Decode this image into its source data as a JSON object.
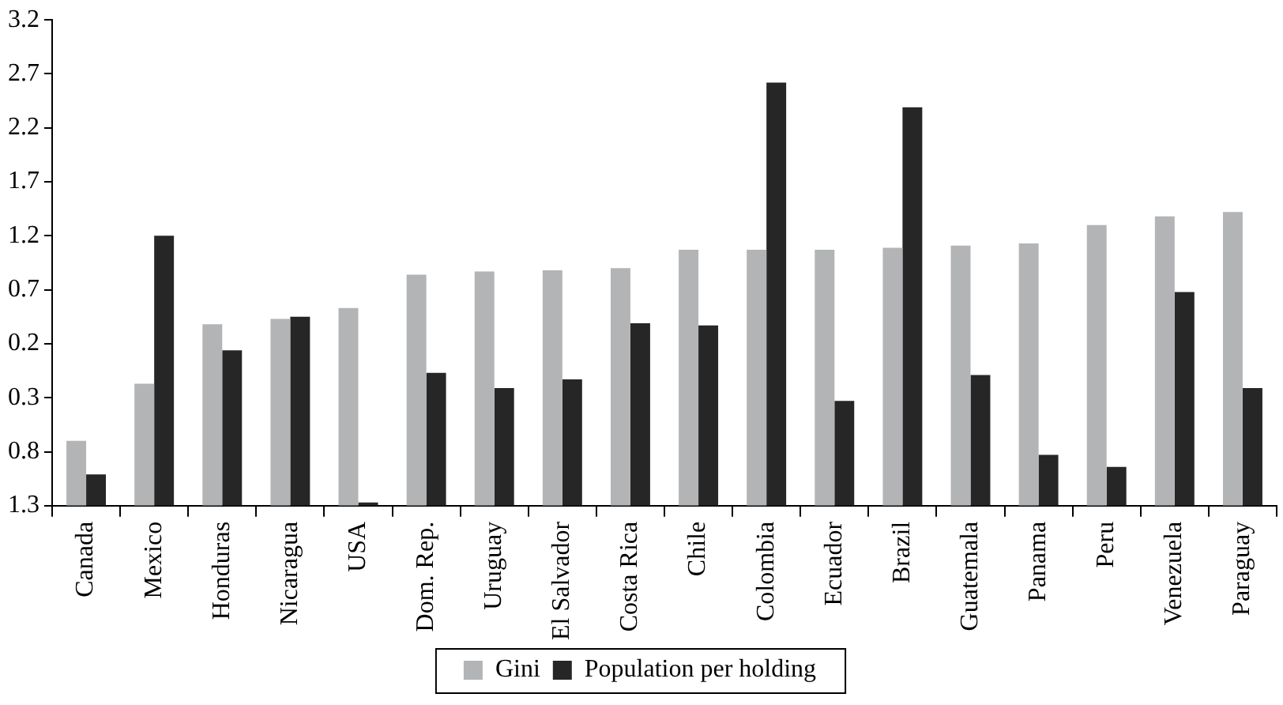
{
  "chart_data": {
    "type": "bar",
    "categories": [
      "Canada",
      "Mexico",
      "Honduras",
      "Nicaragua",
      "USA",
      "Dom. Rep.",
      "Uruguay",
      "El Salvador",
      "Costa Rica",
      "Chile",
      "Colombia",
      "Ecuador",
      "Brazil",
      "Guatemala",
      "Panama",
      "Peru",
      "Venezuela",
      "Paraguay"
    ],
    "series": [
      {
        "name": "Gini",
        "color": "#b2b4b6",
        "values": [
          0.6,
          1.13,
          1.68,
          1.73,
          1.83,
          2.14,
          2.17,
          2.18,
          2.2,
          2.37,
          2.37,
          2.37,
          2.39,
          2.41,
          2.43,
          2.6,
          2.68,
          2.72
        ],
        "base": [
          -1.3,
          -1.3,
          -1.3,
          -1.3,
          -1.3,
          -1.3,
          -1.3,
          -1.3,
          -1.3,
          -1.3,
          -1.3,
          -1.3,
          -1.3,
          -1.3,
          -1.3,
          -1.3,
          -1.3,
          -1.3
        ]
      },
      {
        "name": "Population per holding",
        "color": "#262626",
        "values": [
          0.29,
          2.5,
          1.44,
          1.75,
          0.03,
          1.23,
          1.09,
          1.17,
          1.69,
          1.67,
          3.92,
          0.97,
          3.69,
          1.21,
          0.47,
          0.36,
          1.98,
          1.09
        ],
        "base": [
          -1.3,
          -1.3,
          -1.3,
          -1.3,
          -1.3,
          -1.3,
          -1.3,
          -1.3,
          -1.3,
          -1.3,
          -1.3,
          -1.3,
          -1.3,
          -1.3,
          -1.3,
          -1.3,
          -1.3,
          -1.3
        ]
      }
    ],
    "ylim": [
      -1.3,
      3.2
    ],
    "yticks": [
      {
        "value": -1.3,
        "label": "1.3"
      },
      {
        "value": -0.8,
        "label": "0.8"
      },
      {
        "value": -0.3,
        "label": "0.3"
      },
      0.2,
      0.7,
      1.2,
      1.7,
      2.2,
      2.7,
      3.2
    ],
    "grid": false,
    "legend": "bottom"
  }
}
